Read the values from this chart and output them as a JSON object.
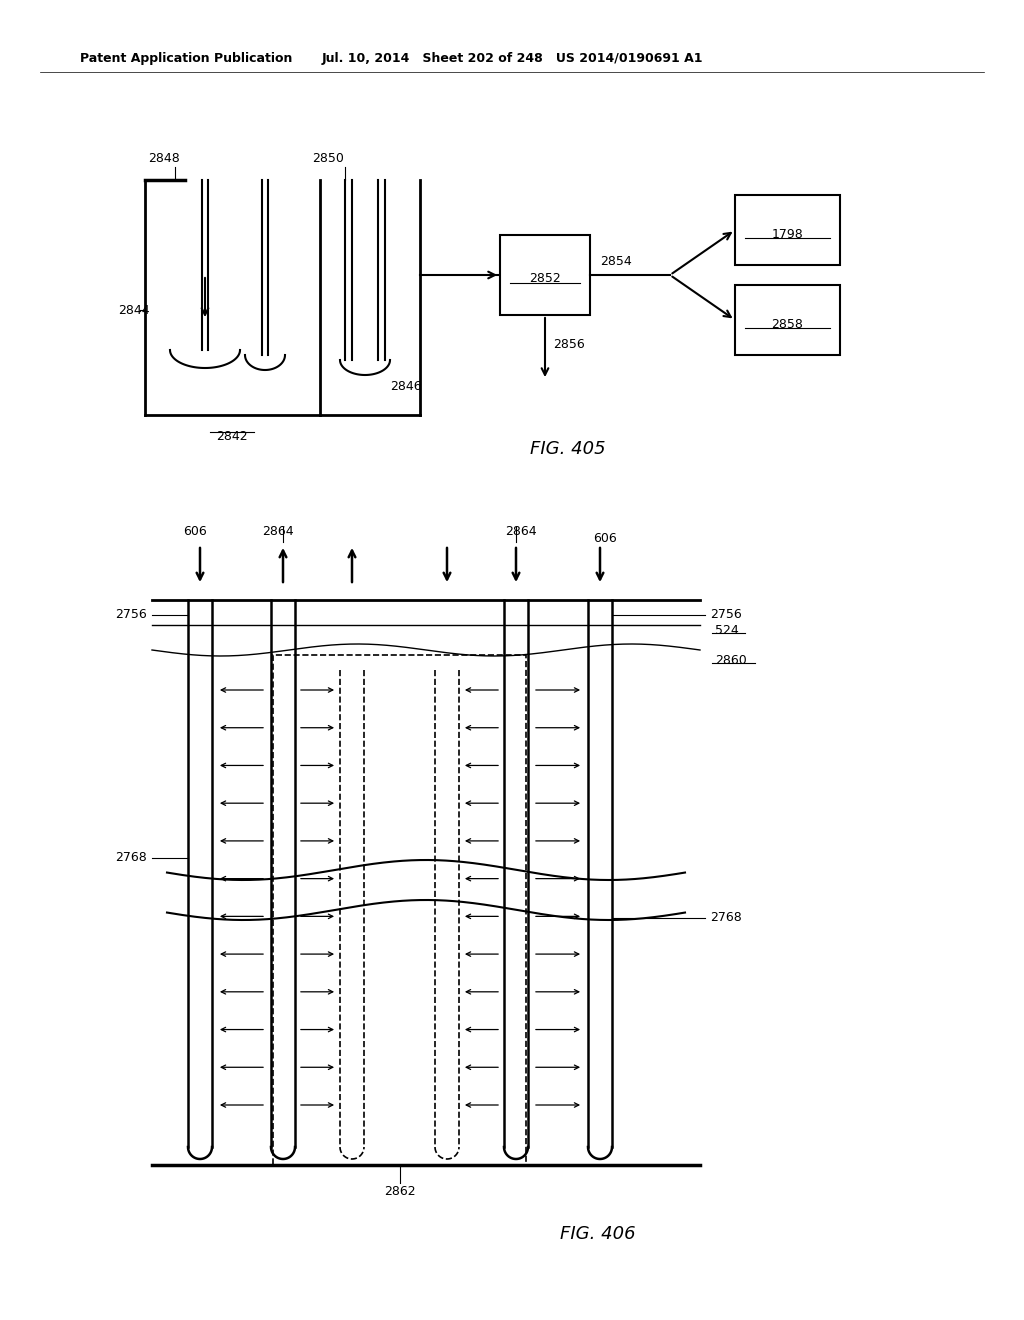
{
  "header_left": "Patent Application Publication",
  "header_mid": "Jul. 10, 2014   Sheet 202 of 248   US 2014/0190691 A1",
  "bg_color": "#ffffff"
}
